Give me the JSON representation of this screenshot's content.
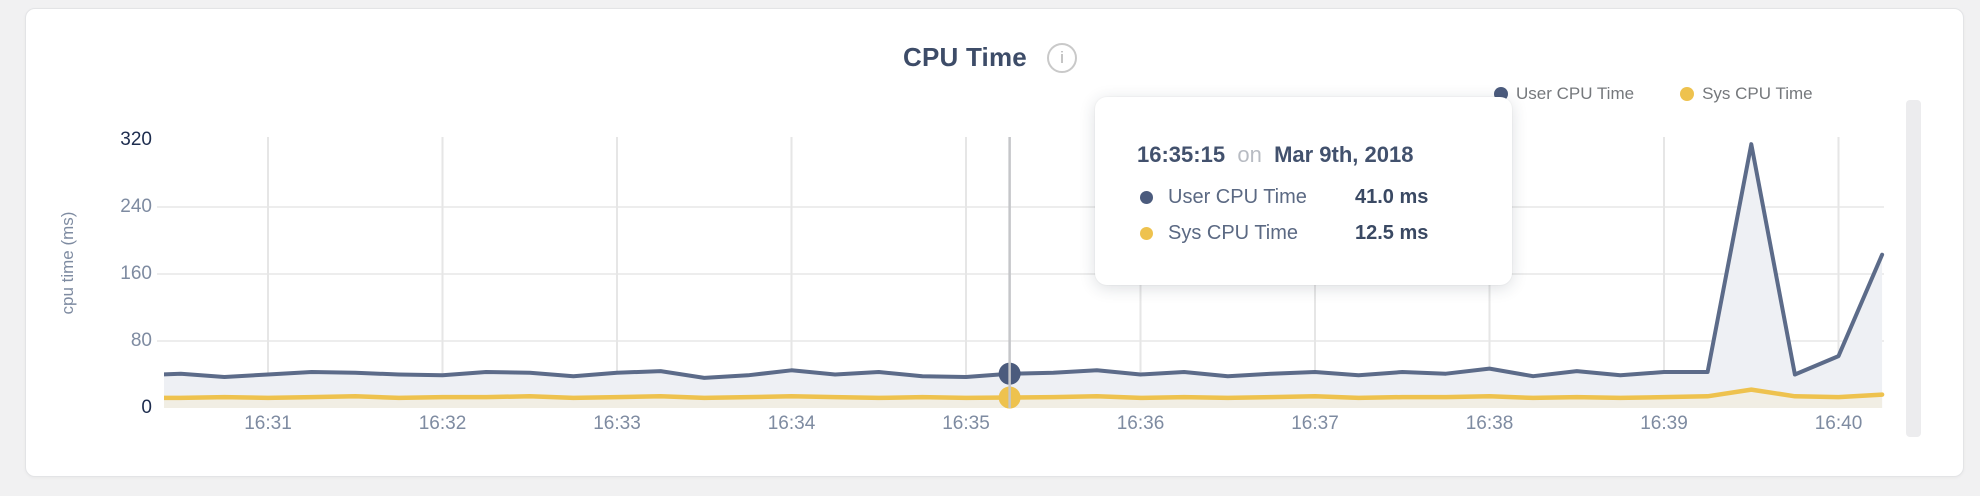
{
  "card": {
    "title": "CPU Time",
    "info_glyph": "i"
  },
  "legend": {
    "items": [
      {
        "label": "User CPU Time",
        "color": "#4b5b7d"
      },
      {
        "label": "Sys CPU Time",
        "color": "#eec24e"
      }
    ]
  },
  "axes": {
    "y_title": "cpu time (ms)",
    "y_ticks": [
      {
        "label": "320",
        "value": 320,
        "dark": true
      },
      {
        "label": "240",
        "value": 240,
        "dark": false
      },
      {
        "label": "160",
        "value": 160,
        "dark": false
      },
      {
        "label": "80",
        "value": 80,
        "dark": false
      },
      {
        "label": "0",
        "value": 0,
        "dark": true
      }
    ],
    "x_ticks": [
      "16:31",
      "16:32",
      "16:33",
      "16:34",
      "16:35",
      "16:36",
      "16:37",
      "16:38",
      "16:39",
      "16:40"
    ]
  },
  "tooltip": {
    "time": "16:35:15",
    "on_word": "on",
    "date": "Mar 9th, 2018",
    "rows": [
      {
        "label": "User CPU Time",
        "value": "41.0 ms",
        "color": "#4b5b7d"
      },
      {
        "label": "Sys CPU Time",
        "value": "12.5 ms",
        "color": "#eec24e"
      }
    ]
  },
  "chart_data": {
    "type": "area",
    "title": "CPU Time",
    "ylabel": "cpu time (ms)",
    "ylim": [
      0,
      320
    ],
    "y_tick_values": [
      0,
      80,
      160,
      240,
      320
    ],
    "x_tick_labels": [
      "16:31",
      "16:32",
      "16:33",
      "16:34",
      "16:35",
      "16:36",
      "16:37",
      "16:38",
      "16:39",
      "16:40"
    ],
    "grid": true,
    "legend_position": "top-right",
    "x": [
      "16:30:15",
      "16:30:30",
      "16:30:45",
      "16:31:00",
      "16:31:15",
      "16:31:30",
      "16:31:45",
      "16:32:00",
      "16:32:15",
      "16:32:30",
      "16:32:45",
      "16:33:00",
      "16:33:15",
      "16:33:30",
      "16:33:45",
      "16:34:00",
      "16:34:15",
      "16:34:30",
      "16:34:45",
      "16:35:00",
      "16:35:15",
      "16:35:30",
      "16:35:45",
      "16:36:00",
      "16:36:15",
      "16:36:30",
      "16:36:45",
      "16:37:00",
      "16:37:15",
      "16:37:30",
      "16:37:45",
      "16:38:00",
      "16:38:15",
      "16:38:30",
      "16:38:45",
      "16:39:00",
      "16:39:15",
      "16:39:30",
      "16:39:45",
      "16:40:00",
      "16:40:15"
    ],
    "series": [
      {
        "name": "User CPU Time",
        "color": "#5c6b89",
        "fill": "#eef0f4",
        "values": [
          39,
          41,
          37,
          40,
          43,
          42,
          40,
          39,
          43,
          42,
          38,
          42,
          44,
          36,
          39,
          45,
          40,
          43,
          38,
          37,
          41,
          42,
          45,
          40,
          43,
          38,
          41,
          43,
          39,
          43,
          41,
          47,
          38,
          44,
          39,
          43,
          43,
          315,
          40,
          62,
          183
        ]
      },
      {
        "name": "Sys CPU Time",
        "color": "#eec24e",
        "fill": "#f1eee4",
        "values": [
          12,
          12,
          13,
          12,
          13,
          14,
          12,
          13,
          13,
          14,
          12,
          13,
          14,
          12,
          13,
          14,
          13,
          12,
          13,
          12,
          12.5,
          13,
          14,
          12,
          13,
          12,
          13,
          14,
          12,
          13,
          13,
          14,
          12,
          13,
          12,
          13,
          14,
          22,
          14,
          13,
          16
        ]
      }
    ],
    "hover": {
      "index": 20,
      "time": "16:35:15",
      "date": "Mar 9th, 2018",
      "user_value_ms": 41.0,
      "sys_value_ms": 12.5
    }
  }
}
